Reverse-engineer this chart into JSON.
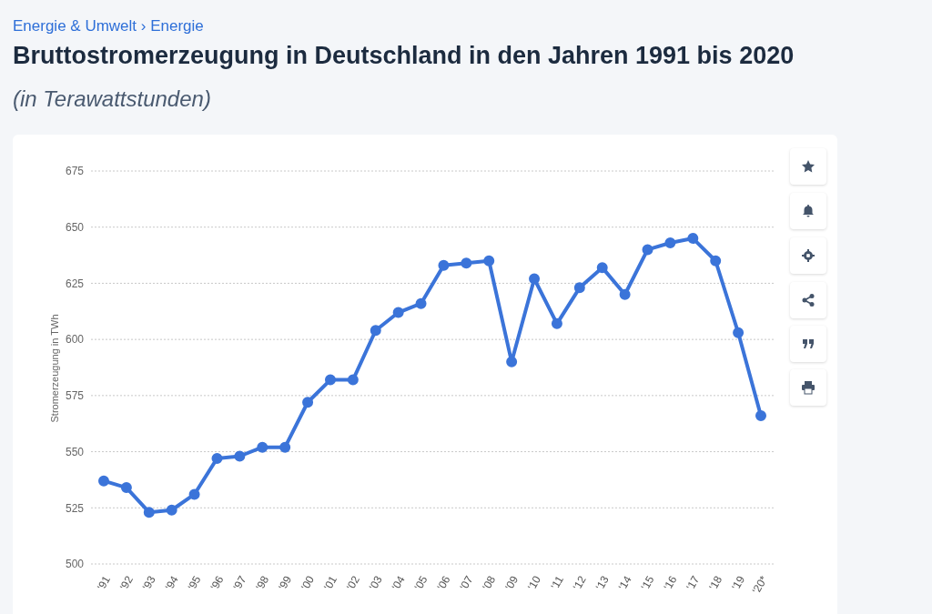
{
  "chart_data": {
    "type": "line",
    "title": "Bruttostromerzeugung in Deutschland in den Jahren 1991 bis 2020",
    "subtitle": "(in Terawattstunden)",
    "annotations": [
      "Energie & Umwelt › Energie"
    ],
    "ylabel": "Stromerzeugung in TWh",
    "categories": [
      "'91",
      "'92",
      "'93",
      "'94",
      "'95",
      "'96",
      "'97",
      "'98",
      "'99",
      "'00",
      "'01",
      "'02",
      "'03",
      "'04",
      "'05",
      "'06",
      "'07",
      "'08",
      "'09",
      "'10",
      "'11",
      "'12",
      "'13",
      "'14",
      "'15",
      "'16",
      "'17",
      "'18",
      "'19",
      "'20*"
    ],
    "series": [
      {
        "color": "#3b74d9",
        "values": [
          537,
          534,
          523,
          524,
          531,
          547,
          548,
          552,
          552,
          572,
          582,
          582,
          604,
          612,
          616,
          633,
          634,
          635,
          590,
          627,
          607,
          623,
          632,
          620,
          640,
          643,
          645,
          635,
          603,
          566
        ]
      }
    ],
    "ylim": [
      500,
      675
    ],
    "yticks": [
      500,
      525,
      550,
      575,
      600,
      625,
      650,
      675
    ],
    "grid": "y",
    "marker": "circle",
    "line_style": "solid"
  }
}
